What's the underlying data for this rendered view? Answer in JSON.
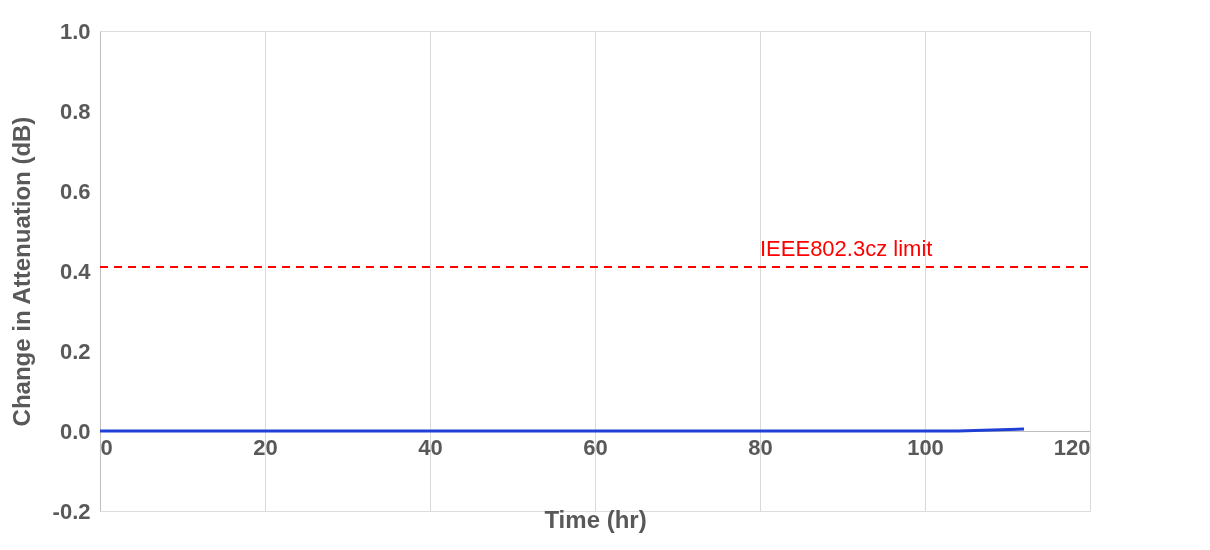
{
  "chart_data": {
    "type": "line",
    "xlabel": "Time (hr)",
    "ylabel": "Change in Attenuation (dB)",
    "x": [
      0,
      8,
      16,
      24,
      32,
      40,
      48,
      56,
      64,
      72,
      80,
      88,
      96,
      104,
      112
    ],
    "series": [
      {
        "color": "#1f3fd6",
        "values": [
          0.0,
          0.0,
          0.0,
          0.0,
          0.0,
          0.0,
          0.0,
          0.0,
          0.0,
          0.0,
          0.0,
          0.0,
          0.0,
          0.0,
          0.005
        ]
      }
    ],
    "xlim": [
      0,
      120
    ],
    "xticks": [
      0,
      20,
      40,
      60,
      80,
      100,
      120
    ],
    "ylim": [
      -0.2,
      1.0
    ],
    "yticks": [
      {
        "value": -0.2,
        "label": "-0.2"
      },
      {
        "value": 0,
        "label": "0.0"
      },
      {
        "value": 0.2,
        "label": "0.2"
      },
      {
        "value": 0.4,
        "label": "0.4"
      },
      {
        "value": 0.6,
        "label": "0.6"
      },
      {
        "value": 0.8,
        "label": "0.8"
      },
      {
        "value": 1.0,
        "label": "1.0"
      }
    ],
    "ref_lines": [
      {
        "axis": "y",
        "value": 0.41,
        "label": "IEEE802.3cz limit",
        "color": "#ff0000",
        "line_style": "dashed"
      }
    ],
    "grid": "x",
    "legend": false
  }
}
